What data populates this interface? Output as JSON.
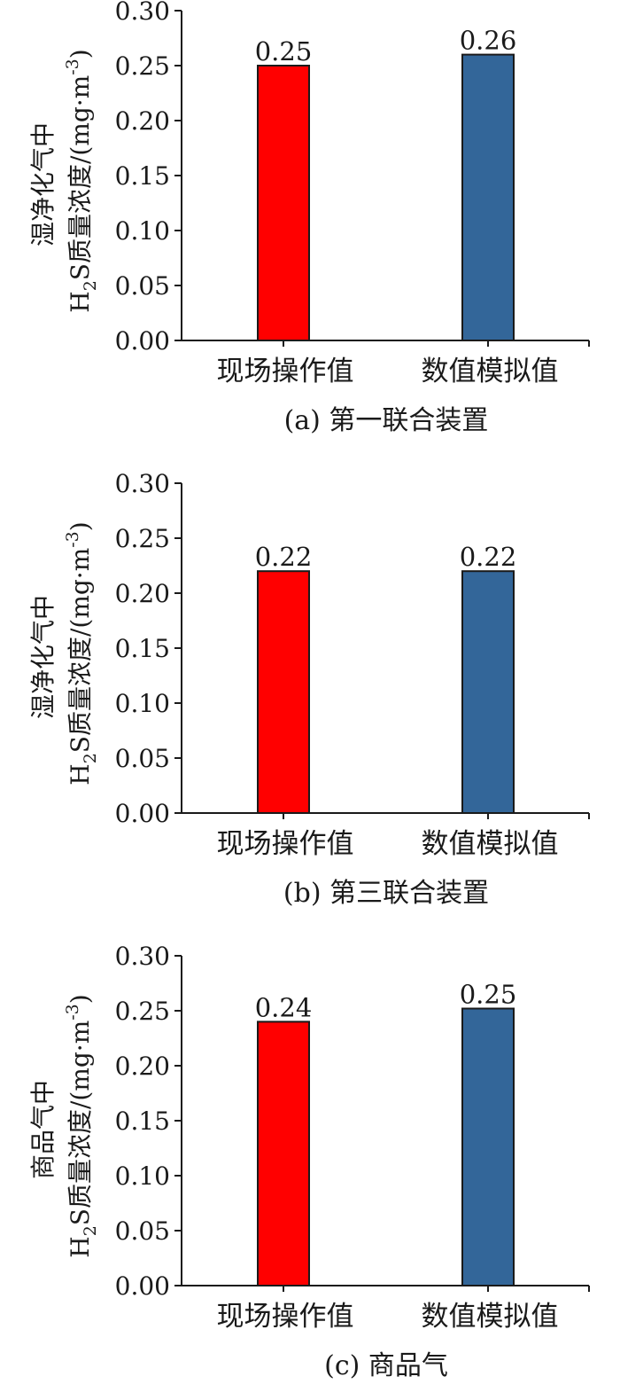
{
  "colors": {
    "field": "#ff0000",
    "simulated": "#336699",
    "axis": "#1a1a1a"
  },
  "chart_data": [
    {
      "type": "bar",
      "caption": "(a) 第一联合装置",
      "ylabel_line1": "湿净化气中",
      "ylabel_line2_prefix": "H",
      "ylabel_line2_sub": "2",
      "ylabel_line2_rest": "S质量浓度/(mg·m",
      "ylabel_exponent": "-3",
      "ylabel_close": ")",
      "categories": [
        "现场操作值",
        "数值模拟值"
      ],
      "values": [
        0.25,
        0.26
      ],
      "value_labels": [
        "0.25",
        "0.26"
      ],
      "ylim": [
        0,
        0.3
      ],
      "yticks": [
        "0.00",
        "0.05",
        "0.10",
        "0.15",
        "0.20",
        "0.25",
        "0.30"
      ]
    },
    {
      "type": "bar",
      "caption": "(b) 第三联合装置",
      "ylabel_line1": "湿净化气中",
      "ylabel_line2_prefix": "H",
      "ylabel_line2_sub": "2",
      "ylabel_line2_rest": "S质量浓度/(mg·m",
      "ylabel_exponent": "-3",
      "ylabel_close": ")",
      "categories": [
        "现场操作值",
        "数值模拟值"
      ],
      "values": [
        0.22,
        0.22
      ],
      "value_labels": [
        "0.22",
        "0.22"
      ],
      "ylim": [
        0,
        0.3
      ],
      "yticks": [
        "0.00",
        "0.05",
        "0.10",
        "0.15",
        "0.20",
        "0.25",
        "0.30"
      ]
    },
    {
      "type": "bar",
      "caption": "(c) 商品气",
      "ylabel_line1": "商品气中",
      "ylabel_line2_prefix": "H",
      "ylabel_line2_sub": "2",
      "ylabel_line2_rest": "S质量浓度/(mg·m",
      "ylabel_exponent": "-3",
      "ylabel_close": ")",
      "categories": [
        "现场操作值",
        "数值模拟值"
      ],
      "values": [
        0.24,
        0.252
      ],
      "value_labels": [
        "0.24",
        "0.25"
      ],
      "ylim": [
        0,
        0.3
      ],
      "yticks": [
        "0.00",
        "0.05",
        "0.10",
        "0.15",
        "0.20",
        "0.25",
        "0.30"
      ]
    }
  ]
}
